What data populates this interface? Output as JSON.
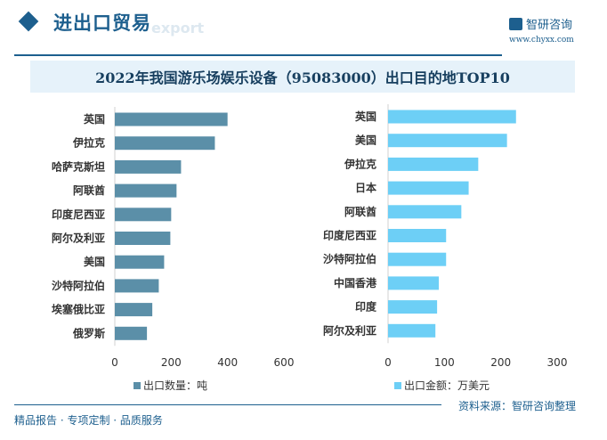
{
  "header": {
    "title": "进出口贸易",
    "ghost": "export",
    "brand": "智研咨询",
    "url": "www.chyxx.com"
  },
  "chart_title": "2022年我国游乐场娱乐设备（95083000）出口目的地TOP10",
  "chart_data": [
    {
      "type": "bar",
      "orientation": "horizontal",
      "legend": "出口数量：吨",
      "legend_position": "bottom",
      "color": "#5b8fa8",
      "categories": [
        "英国",
        "伊拉克",
        "哈萨克斯坦",
        "阿联酋",
        "印度尼西亚",
        "阿尔及利亚",
        "美国",
        "沙特阿拉伯",
        "埃塞俄比亚",
        "俄罗斯"
      ],
      "values": [
        400,
        355,
        235,
        219,
        200,
        197,
        175,
        156,
        133,
        114
      ],
      "xlim": [
        0,
        600
      ],
      "ticks": [
        "0",
        "200",
        "400",
        "600"
      ],
      "grid": false
    },
    {
      "type": "bar",
      "orientation": "horizontal",
      "legend": "出口金额：万美元",
      "legend_position": "bottom",
      "color": "#6dcff6",
      "categories": [
        "英国",
        "美国",
        "伊拉克",
        "日本",
        "阿联酋",
        "印度尼西亚",
        "沙特阿拉伯",
        "中国香港",
        "印度",
        "阿尔及利亚"
      ],
      "values": [
        227,
        211,
        160,
        143,
        130,
        103,
        103,
        90,
        87,
        84
      ],
      "xlim": [
        0,
        300
      ],
      "ticks": [
        "0",
        "100",
        "200",
        "300"
      ],
      "grid": false
    }
  ],
  "footer": {
    "left": "精品报告 · 专项定制 · 品质服务",
    "source": "资料来源：智研咨询整理"
  }
}
